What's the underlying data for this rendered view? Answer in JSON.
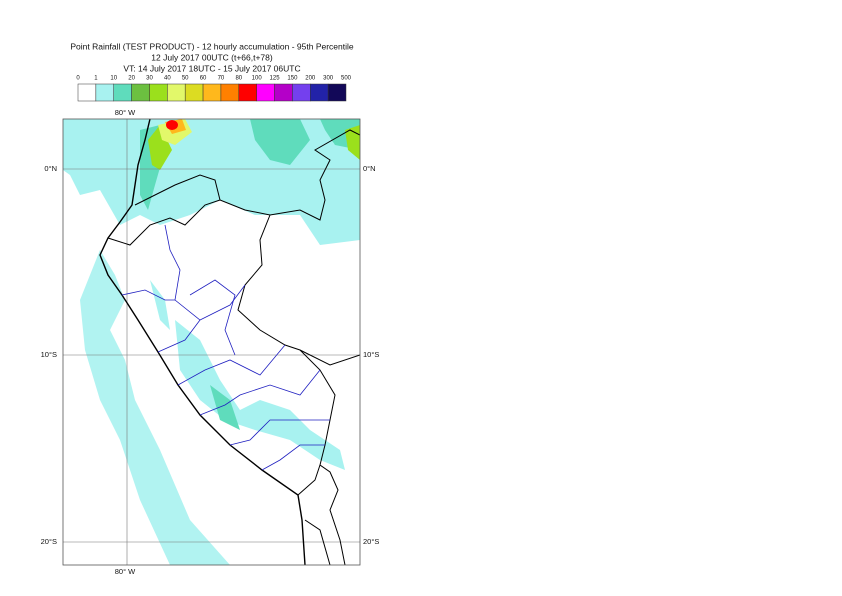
{
  "header": {
    "title_lines": [
      "Point Rainfall (TEST PRODUCT) - 12 hourly accumulation - 95th Percentile",
      "12 July 2017 00UTC (t+66,t+78)",
      "VT: 14 July 2017 18UTC - 15 July 2017 06UTC"
    ]
  },
  "legend": {
    "labels": [
      "0",
      "1",
      "10",
      "20",
      "30",
      "40",
      "50",
      "60",
      "70",
      "80",
      "100",
      "125",
      "150",
      "200",
      "300",
      "500"
    ],
    "colors": [
      "#ffffff",
      "#a8f2f0",
      "#5fdcbc",
      "#6cc040",
      "#9be01c",
      "#e2f86a",
      "#dcdc22",
      "#ffb81c",
      "#ff8000",
      "#ff0000",
      "#ff00ff",
      "#b400c8",
      "#7440ee",
      "#2222a8",
      "#120858"
    ]
  },
  "map": {
    "top_lon_label": "80° W",
    "bottom_lon_label": "80° W",
    "left_lat_labels": [
      "0°N",
      "10°S",
      "20°S"
    ],
    "right_lat_labels": [
      "0°N",
      "10°S",
      "20°S"
    ]
  }
}
